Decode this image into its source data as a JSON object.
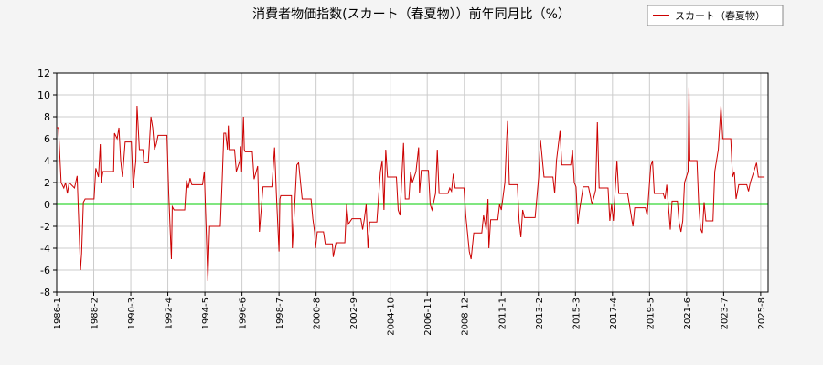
{
  "chart_data": {
    "type": "line",
    "title": "消費者物価指数(スカート（春夏物））前年同月比（%）",
    "x": [
      1986.0,
      1986.1,
      1986.25,
      1986.4,
      1986.5,
      1986.6,
      1986.7,
      1987.0,
      1987.15,
      1987.34,
      1987.4,
      1987.5,
      1987.6,
      1988.1,
      1988.2,
      1988.35,
      1988.45,
      1988.5,
      1988.6,
      1989.2,
      1989.25,
      1989.4,
      1989.5,
      1989.6,
      1989.7,
      1989.85,
      1990.2,
      1990.3,
      1990.45,
      1990.52,
      1990.65,
      1990.85,
      1990.9,
      1991.15,
      1991.3,
      1991.4,
      1991.5,
      1991.6,
      1991.7,
      1992.2,
      1992.3,
      1992.45,
      1992.5,
      1992.6,
      1993.2,
      1993.3,
      1993.4,
      1993.5,
      1993.6,
      1994.2,
      1994.3,
      1994.4,
      1994.5,
      1994.6,
      1995.2,
      1995.3,
      1995.4,
      1995.5,
      1995.6,
      1995.65,
      1995.7,
      1996.0,
      1996.1,
      1996.3,
      1996.35,
      1996.4,
      1996.5,
      1996.55,
      1996.6,
      1997.0,
      1997.1,
      1997.3,
      1997.4,
      1997.6,
      1998.1,
      1998.25,
      1998.35,
      1998.5,
      1998.55,
      1998.6,
      1999.2,
      1999.25,
      1999.35,
      1999.5,
      1999.6,
      1999.8,
      2000.3,
      2000.4,
      2000.5,
      2000.55,
      2000.65,
      2001.0,
      2001.1,
      2001.5,
      2001.55,
      2001.7,
      2002.2,
      2002.3,
      2002.4,
      2002.6,
      2003.1,
      2003.2,
      2003.3,
      2003.4,
      2003.5,
      2003.6,
      2004.0,
      2004.2,
      2004.3,
      2004.4,
      2004.5,
      2004.6,
      2005.1,
      2005.2,
      2005.3,
      2005.5,
      2005.6,
      2005.8,
      2005.9,
      2006.0,
      2006.2,
      2006.35,
      2006.4,
      2006.5,
      2006.9,
      2007.0,
      2007.1,
      2007.3,
      2007.4,
      2007.5,
      2008.0,
      2008.1,
      2008.2,
      2008.3,
      2008.4,
      2008.9,
      2009.0,
      2009.2,
      2009.3,
      2009.45,
      2009.9,
      2010.0,
      2010.15,
      2010.25,
      2010.3,
      2010.4,
      2010.8,
      2010.9,
      2011.0,
      2011.2,
      2011.3,
      2011.35,
      2011.45,
      2011.9,
      2012.0,
      2012.1,
      2012.2,
      2012.3,
      2012.9,
      2013.1,
      2013.2,
      2013.4,
      2013.9,
      2014.0,
      2014.1,
      2014.3,
      2014.4,
      2014.9,
      2015.0,
      2015.1,
      2015.2,
      2015.3,
      2015.4,
      2015.6,
      2015.9,
      2016.1,
      2016.3,
      2016.4,
      2016.5,
      2017.0,
      2017.1,
      2017.2,
      2017.3,
      2017.5,
      2017.6,
      2018.1,
      2018.3,
      2018.4,
      2018.5,
      2019.1,
      2019.2,
      2019.4,
      2019.5,
      2019.6,
      2020.1,
      2020.2,
      2020.3,
      2020.5,
      2020.6,
      2020.9,
      2021.0,
      2021.1,
      2021.2,
      2021.3,
      2021.5,
      2021.55,
      2021.6,
      2022.0,
      2022.1,
      2022.2,
      2022.3,
      2022.4,
      2022.5,
      2022.9,
      2023.0,
      2023.2,
      2023.35,
      2023.45,
      2023.9,
      2024.0,
      2024.1,
      2024.2,
      2024.35,
      2024.8,
      2024.9,
      2025.0,
      2025.2,
      2025.35,
      2025.45,
      2025.8
    ],
    "series": [
      {
        "name": "スカート（春夏物）",
        "color": "#cc0000",
        "values": [
          7,
          7,
          2,
          1.5,
          2,
          1,
          2,
          1.5,
          2.6,
          -6,
          -4.5,
          0.2,
          0.5,
          0.5,
          3.3,
          2.5,
          5.5,
          2,
          3,
          3,
          6.5,
          6,
          7,
          4,
          2.5,
          5.7,
          5.7,
          1.5,
          4,
          9,
          5,
          5,
          3.8,
          3.8,
          8,
          7,
          5,
          5.5,
          6.3,
          6.3,
          1,
          -5,
          -0.2,
          -0.5,
          -0.5,
          2.2,
          1.5,
          2.4,
          1.8,
          1.8,
          3,
          -2,
          -7,
          -2,
          -2,
          2,
          6.5,
          6.5,
          5,
          7.2,
          5,
          5,
          3,
          4,
          5.3,
          3,
          8,
          5,
          4.8,
          4.8,
          2.3,
          3.5,
          -2.5,
          1.6,
          1.6,
          5.2,
          1,
          -4.3,
          0.5,
          0.8,
          0.8,
          -4,
          -1,
          3.6,
          3.8,
          0.5,
          0.5,
          -1.3,
          -2.5,
          -4,
          -2.5,
          -2.5,
          -3.6,
          -3.6,
          -4.8,
          -3.5,
          -3.5,
          0,
          -1.8,
          -1.3,
          -1.3,
          -2.3,
          -1.3,
          0,
          -4,
          -1.6,
          -1.6,
          3,
          4,
          -0.5,
          5,
          2.5,
          2.5,
          -0.5,
          -1,
          5.6,
          0.5,
          0.5,
          3,
          2,
          3,
          5.2,
          1,
          3.1,
          3.1,
          0,
          -0.5,
          1,
          5,
          1,
          1,
          1.5,
          1.2,
          2.8,
          1.5,
          1.5,
          -1,
          -4.3,
          -5,
          -2.6,
          -2.6,
          -1,
          -2.3,
          0.5,
          -4,
          -1.4,
          -1.4,
          0,
          -0.5,
          2,
          6,
          7.6,
          1.8,
          1.8,
          -1.5,
          -3,
          -0.5,
          -1.2,
          -1.2,
          2.5,
          5.9,
          2.5,
          2.5,
          1,
          4,
          6.7,
          3.6,
          3.6,
          5,
          2,
          1.6,
          -1.8,
          -0.5,
          1.6,
          1.6,
          0,
          1.3,
          7.5,
          1.5,
          1.5,
          -1.5,
          0,
          -1.5,
          4,
          1,
          1,
          -1,
          -2,
          -0.3,
          -0.3,
          -1,
          3.5,
          4,
          1,
          1,
          0.5,
          1.8,
          -2.3,
          0.3,
          0.3,
          -1.7,
          -2.5,
          -1.5,
          2,
          3,
          10.7,
          4,
          4,
          0,
          -2.2,
          -2.6,
          0.2,
          -1.5,
          -1.5,
          3,
          5,
          9,
          6,
          6,
          2.5,
          3,
          0.5,
          1.8,
          1.8,
          1.2,
          2,
          3,
          3.8,
          2.5,
          2.5
        ]
      }
    ],
    "xlim": [
      1986,
      2026
    ],
    "xticks": [
      {
        "value": 1986.0,
        "label": "1986-1"
      },
      {
        "value": 1988.083,
        "label": "1988-2"
      },
      {
        "value": 1990.167,
        "label": "1990-3"
      },
      {
        "value": 1992.25,
        "label": "1992-4"
      },
      {
        "value": 1994.333,
        "label": "1994-5"
      },
      {
        "value": 1996.417,
        "label": "1996-6"
      },
      {
        "value": 1998.5,
        "label": "1998-7"
      },
      {
        "value": 2000.583,
        "label": "2000-8"
      },
      {
        "value": 2002.667,
        "label": "2002-9"
      },
      {
        "value": 2004.75,
        "label": "2004-10"
      },
      {
        "value": 2006.833,
        "label": "2006-11"
      },
      {
        "value": 2008.917,
        "label": "2008-12"
      },
      {
        "value": 2011.0,
        "label": "2011-1"
      },
      {
        "value": 2013.083,
        "label": "2013-2"
      },
      {
        "value": 2015.167,
        "label": "2015-3"
      },
      {
        "value": 2017.25,
        "label": "2017-4"
      },
      {
        "value": 2019.333,
        "label": "2019-5"
      },
      {
        "value": 2021.417,
        "label": "2021-6"
      },
      {
        "value": 2023.5,
        "label": "2023-7"
      },
      {
        "value": 2025.583,
        "label": "2025-8"
      }
    ],
    "ylim": [
      -8,
      12
    ],
    "yticks": [
      -8,
      -6,
      -4,
      -2,
      0,
      2,
      4,
      6,
      8,
      10,
      12
    ],
    "grid": true,
    "zero_line_color": "#00cc00",
    "legend": "upper right"
  }
}
